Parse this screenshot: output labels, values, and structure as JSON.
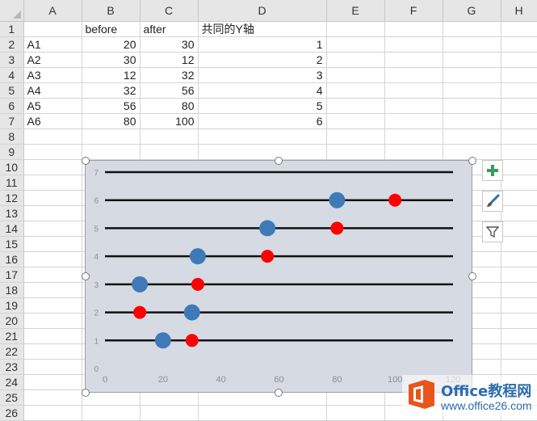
{
  "columns": [
    "A",
    "B",
    "C",
    "D",
    "E",
    "F",
    "G",
    "H"
  ],
  "rows": [
    {
      "num": "1",
      "cells": [
        "",
        "before",
        "after",
        "共同的Y轴",
        "",
        "",
        "",
        ""
      ]
    },
    {
      "num": "2",
      "cells": [
        "A1",
        "20",
        "30",
        "1",
        "",
        "",
        "",
        ""
      ]
    },
    {
      "num": "3",
      "cells": [
        "A2",
        "30",
        "12",
        "2",
        "",
        "",
        "",
        ""
      ]
    },
    {
      "num": "4",
      "cells": [
        "A3",
        "12",
        "32",
        "3",
        "",
        "",
        "",
        ""
      ]
    },
    {
      "num": "5",
      "cells": [
        "A4",
        "32",
        "56",
        "4",
        "",
        "",
        "",
        ""
      ]
    },
    {
      "num": "6",
      "cells": [
        "A5",
        "56",
        "80",
        "5",
        "",
        "",
        "",
        ""
      ]
    },
    {
      "num": "7",
      "cells": [
        "A6",
        "80",
        "100",
        "6",
        "",
        "",
        "",
        ""
      ]
    },
    {
      "num": "8",
      "cells": [
        "",
        "",
        "",
        "",
        "",
        "",
        "",
        ""
      ]
    },
    {
      "num": "9",
      "cells": [
        "",
        "",
        "",
        "",
        "",
        "",
        "",
        ""
      ]
    },
    {
      "num": "10",
      "cells": [
        "",
        "",
        "",
        "",
        "",
        "",
        "",
        ""
      ]
    },
    {
      "num": "11",
      "cells": [
        "",
        "",
        "",
        "",
        "",
        "",
        "",
        ""
      ]
    },
    {
      "num": "12",
      "cells": [
        "",
        "",
        "",
        "",
        "",
        "",
        "",
        ""
      ]
    },
    {
      "num": "13",
      "cells": [
        "",
        "",
        "",
        "",
        "",
        "",
        "",
        ""
      ]
    },
    {
      "num": "14",
      "cells": [
        "",
        "",
        "",
        "",
        "",
        "",
        "",
        ""
      ]
    },
    {
      "num": "15",
      "cells": [
        "",
        "",
        "",
        "",
        "",
        "",
        "",
        ""
      ]
    },
    {
      "num": "16",
      "cells": [
        "",
        "",
        "",
        "",
        "",
        "",
        "",
        ""
      ]
    },
    {
      "num": "17",
      "cells": [
        "",
        "",
        "",
        "",
        "",
        "",
        "",
        ""
      ]
    },
    {
      "num": "18",
      "cells": [
        "",
        "",
        "",
        "",
        "",
        "",
        "",
        ""
      ]
    },
    {
      "num": "19",
      "cells": [
        "",
        "",
        "",
        "",
        "",
        "",
        "",
        ""
      ]
    },
    {
      "num": "20",
      "cells": [
        "",
        "",
        "",
        "",
        "",
        "",
        "",
        ""
      ]
    },
    {
      "num": "21",
      "cells": [
        "",
        "",
        "",
        "",
        "",
        "",
        "",
        ""
      ]
    },
    {
      "num": "22",
      "cells": [
        "",
        "",
        "",
        "",
        "",
        "",
        "",
        ""
      ]
    },
    {
      "num": "23",
      "cells": [
        "",
        "",
        "",
        "",
        "",
        "",
        "",
        ""
      ]
    },
    {
      "num": "24",
      "cells": [
        "",
        "",
        "",
        "",
        "",
        "",
        "",
        ""
      ]
    },
    {
      "num": "25",
      "cells": [
        "",
        "",
        "",
        "",
        "",
        "",
        "",
        ""
      ]
    },
    {
      "num": "26",
      "cells": [
        "",
        "",
        "",
        "",
        "",
        "",
        "",
        ""
      ]
    }
  ],
  "chart_data": {
    "type": "scatter",
    "xlim": [
      0,
      120
    ],
    "ylim": [
      0,
      7
    ],
    "xticks": [
      0,
      20,
      40,
      60,
      80,
      100,
      120
    ],
    "yticks": [
      0,
      1,
      2,
      3,
      4,
      5,
      6,
      7
    ],
    "grid": "horizontal",
    "background": "#d6dae2",
    "line_color": "#111111",
    "series": [
      {
        "name": "before",
        "color": "#3f7ab8",
        "x": [
          20,
          30,
          12,
          32,
          56,
          80
        ],
        "y": [
          1,
          2,
          3,
          4,
          5,
          6
        ]
      },
      {
        "name": "after",
        "color": "#ff0000",
        "x": [
          30,
          12,
          32,
          56,
          80,
          100
        ],
        "y": [
          1,
          2,
          3,
          4,
          5,
          6
        ]
      }
    ]
  },
  "side_buttons": {
    "add": "chart-elements",
    "style": "chart-styles",
    "filter": "chart-filters"
  },
  "watermark": {
    "brand": "Office教程网",
    "url": "www.office26.com"
  }
}
